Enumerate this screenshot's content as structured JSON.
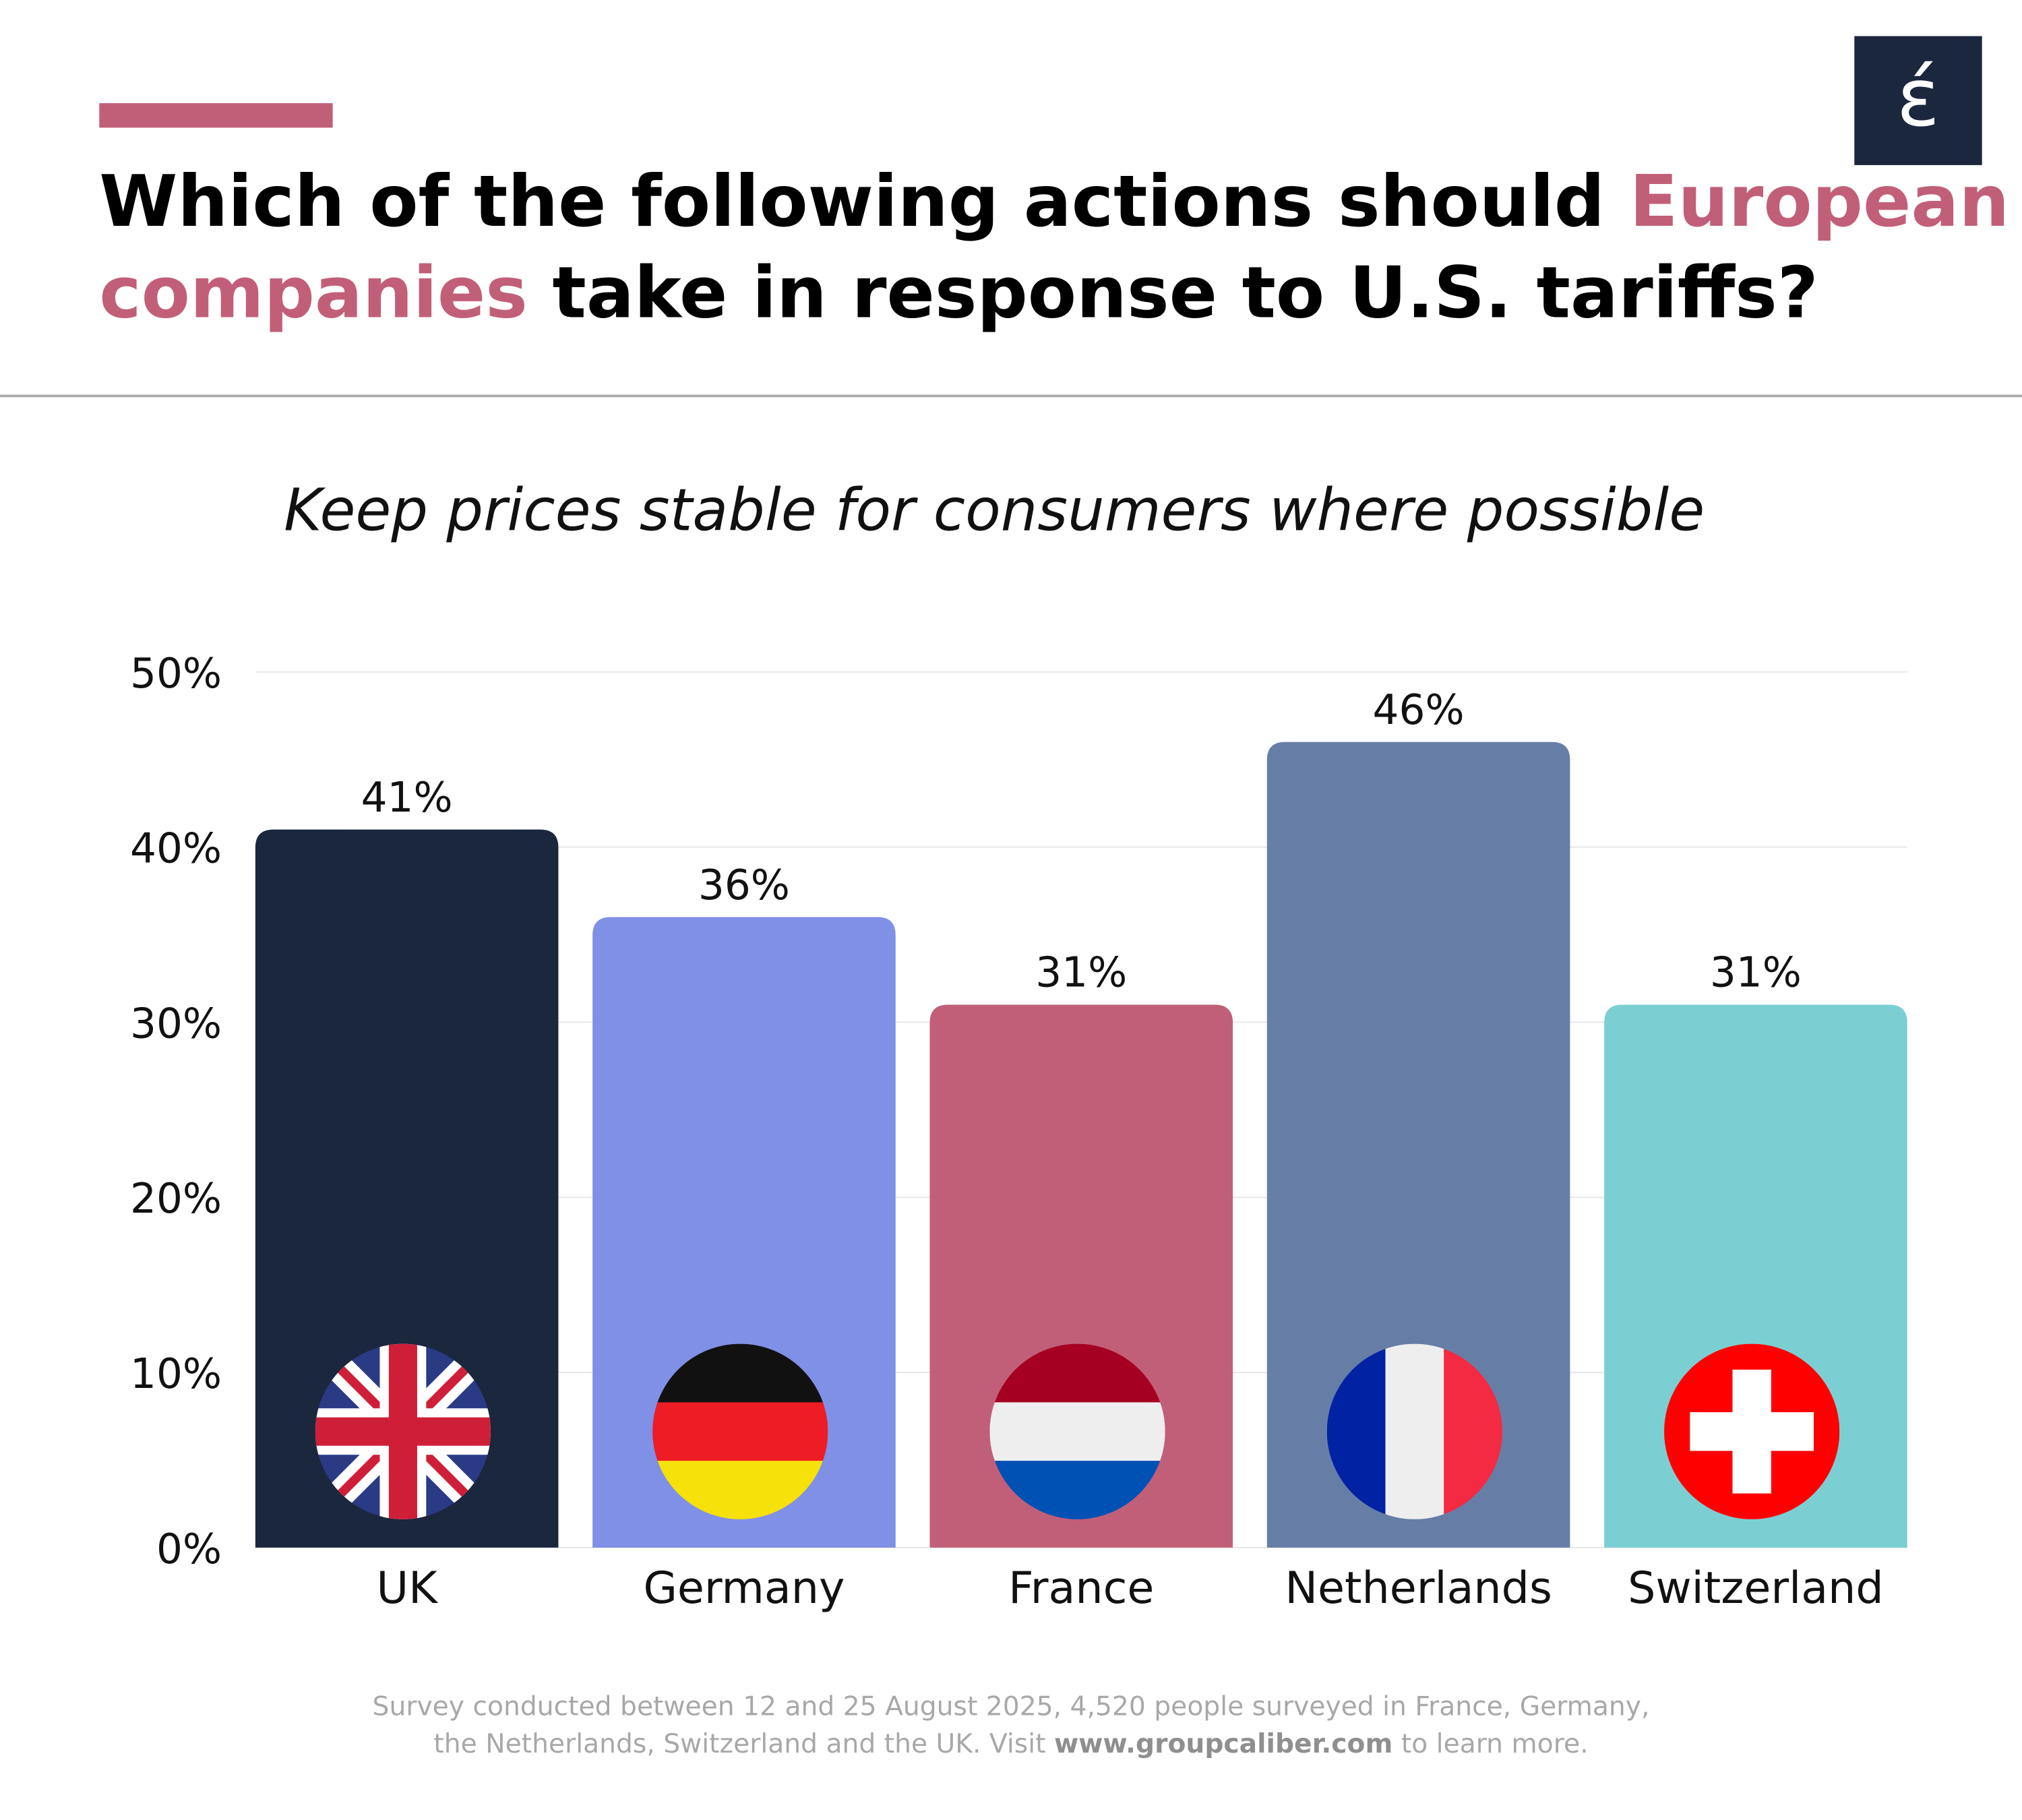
{
  "chart_data": {
    "type": "bar",
    "title_parts": [
      "Which of the following actions should ",
      "European",
      "companies",
      " take in response to U.S. tariffs?"
    ],
    "logo": "έ",
    "subtitle": "Keep prices stable for consumers where possible",
    "categories": [
      "UK",
      "Germany",
      "France",
      "Netherlands",
      "Switzerland"
    ],
    "values": [
      41,
      36,
      31,
      46,
      31
    ],
    "value_labels": [
      "41%",
      "36%",
      "31%",
      "46%",
      "31%"
    ],
    "colors": [
      "#1b273d",
      "#8090e6",
      "#c25f78",
      "#667ea6",
      "#7bcfd3"
    ],
    "ylim": [
      0,
      50
    ],
    "yticks": [
      {
        "value": 0,
        "label": "0%"
      },
      {
        "value": 10,
        "label": "10%"
      },
      {
        "value": 20,
        "label": "20%"
      },
      {
        "value": 30,
        "label": "30%"
      },
      {
        "value": 40,
        "label": "40%"
      },
      {
        "value": 50,
        "label": "50%"
      }
    ],
    "grid": true,
    "footnote_line1": "Survey conducted between 12 and 25 August 2025, 4,520 people surveyed in France, Germany,",
    "footnote_line2_parts": [
      "the Netherlands, Switzerland and the UK. Visit ",
      "www.groupcaliber.com",
      " to learn more."
    ]
  }
}
